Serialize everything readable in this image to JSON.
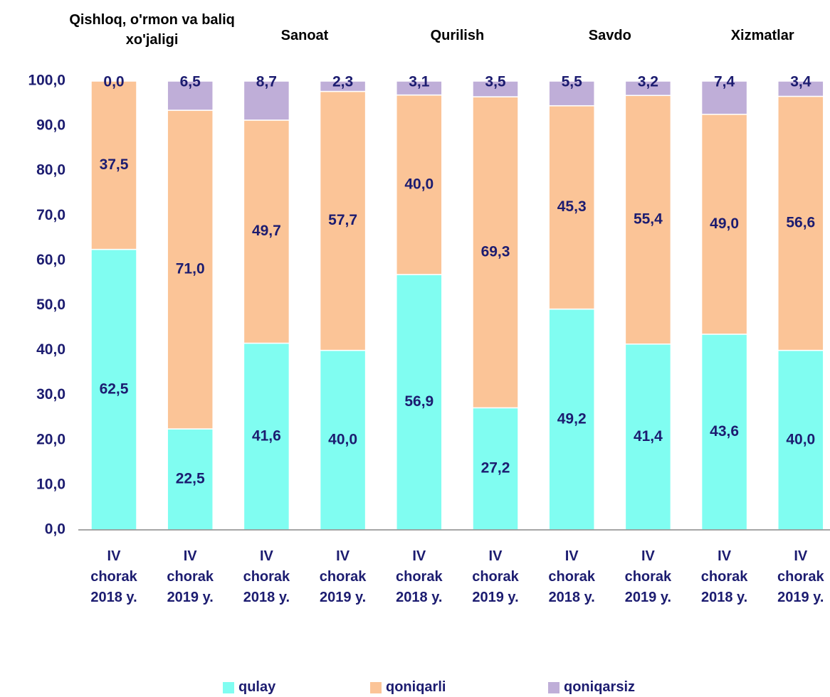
{
  "chart_data": {
    "type": "stacked_bar",
    "groups": [
      "Qishloq, o'rmon va baliq xo'jaligi",
      "Sanoat",
      "Qurilish",
      "Savdo",
      "Xizmatlar"
    ],
    "categories": [
      "IV\nchorak\n2018 y.",
      "IV\nchorak\n2019 y.",
      "IV\nchorak\n2018 y.",
      "IV\nchorak\n2019 y.",
      "IV\nchorak\n2018 y.",
      "IV\nchorak\n2019 y.",
      "IV\nchorak\n2018 y.",
      "IV\nchorak\n2019 y.",
      "IV\nchorak\n2018 y.",
      "IV\nchorak\n2019 y."
    ],
    "series": [
      {
        "name": "qulay",
        "color": "#80fdf1",
        "values": [
          62.5,
          22.5,
          41.6,
          40.0,
          56.9,
          27.2,
          49.2,
          41.4,
          43.6,
          40.0
        ],
        "value_labels": [
          "62,5",
          "22,5",
          "41,6",
          "40,0",
          "56,9",
          "27,2",
          "49,2",
          "41,4",
          "43,6",
          "40,0"
        ]
      },
      {
        "name": "qoniqarli",
        "color": "#fbc497",
        "values": [
          37.5,
          71.0,
          49.7,
          57.7,
          40.0,
          69.3,
          45.3,
          55.4,
          49.0,
          56.6
        ],
        "value_labels": [
          "37,5",
          "71,0",
          "49,7",
          "57,7",
          "40,0",
          "69,3",
          "45,3",
          "55,4",
          "49,0",
          "56,6"
        ]
      },
      {
        "name": "qoniqarsiz",
        "color": "#bfaed8",
        "values": [
          0.0,
          6.5,
          8.7,
          2.3,
          3.1,
          3.5,
          5.5,
          3.2,
          7.4,
          3.4
        ],
        "value_labels": [
          "0,0",
          "6,5",
          "8,7",
          "2,3",
          "3,1",
          "3,5",
          "5,5",
          "3,2",
          "7,4",
          "3,4"
        ]
      }
    ],
    "ylim": [
      0,
      100
    ],
    "yticks": [
      {
        "value": 0,
        "label": "0,0"
      },
      {
        "value": 10,
        "label": "10,0"
      },
      {
        "value": 20,
        "label": "20,0"
      },
      {
        "value": 30,
        "label": "30,0"
      },
      {
        "value": 40,
        "label": "40,0"
      },
      {
        "value": 50,
        "label": "50,0"
      },
      {
        "value": 60,
        "label": "60,0"
      },
      {
        "value": 70,
        "label": "70,0"
      },
      {
        "value": 80,
        "label": "80,0"
      },
      {
        "value": 90,
        "label": "90,0"
      },
      {
        "value": 100,
        "label": "100,0"
      }
    ],
    "grid": false,
    "legend": "bottom"
  }
}
